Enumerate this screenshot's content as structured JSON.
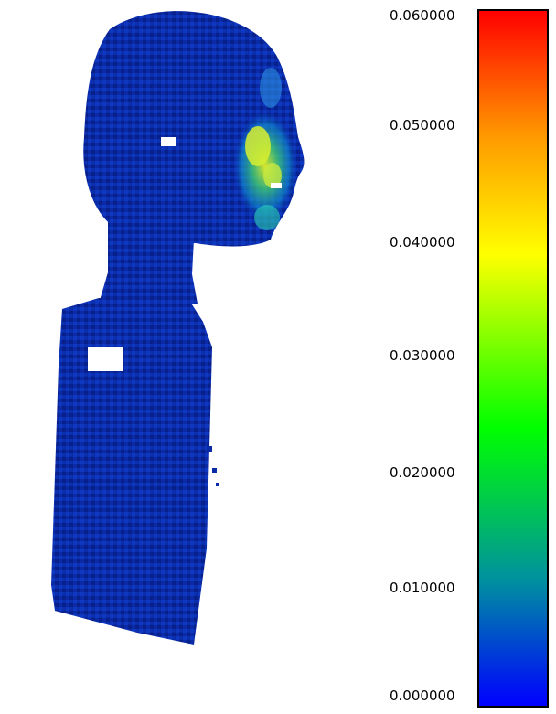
{
  "colorbar": {
    "tick_labels": [
      "0.060000",
      "0.050000",
      "0.040000",
      "0.030000",
      "0.020000",
      "0.010000",
      "0.000000"
    ],
    "ticks": [
      0.06,
      0.05,
      0.04,
      0.03,
      0.02,
      0.01,
      0.0
    ],
    "range": [
      0.0,
      0.06
    ],
    "colors": {
      "min": "#0000ff",
      "low": "#0090a0",
      "mid": "#00ff00",
      "upper": "#ffff00",
      "high": "#ff9900",
      "max": "#ff0000"
    }
  },
  "scene": {
    "subject": "point-cloud-head-bust",
    "dominant_color": "#0b2aa8",
    "highlight_color": "#e8f020"
  }
}
